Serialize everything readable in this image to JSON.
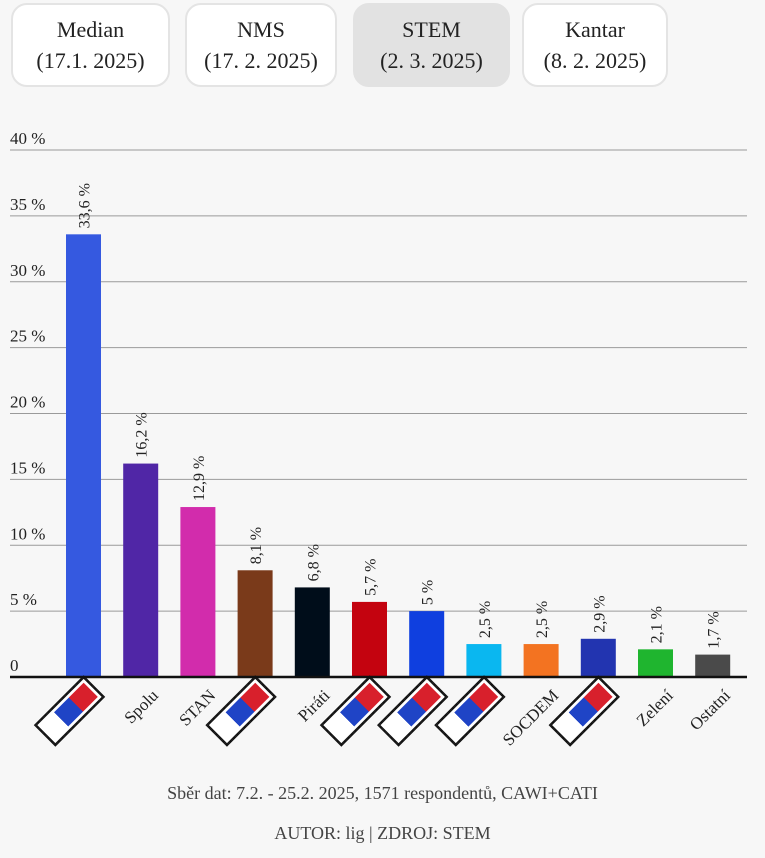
{
  "tabs": [
    {
      "name": "Median",
      "date": "(17.1. 2025)",
      "active": false
    },
    {
      "name": "NMS",
      "date": "(17. 2. 2025)",
      "active": false
    },
    {
      "name": "STEM",
      "date": "(2. 3. 2025)",
      "active": true
    },
    {
      "name": "Kantar",
      "date": "(8. 2. 2025)",
      "active": false
    }
  ],
  "chart_data": {
    "type": "bar",
    "yticks": [
      "0",
      "5 %",
      "10 %",
      "15 %",
      "20 %",
      "25 %",
      "30 %",
      "35 %",
      "40 %"
    ],
    "ylim": [
      0,
      40
    ],
    "grid": true,
    "bars": [
      {
        "label": "",
        "value": 33.6,
        "value_label": "33,6 %",
        "color": "#3559e0",
        "flag": true
      },
      {
        "label": "Spolu",
        "value": 16.2,
        "value_label": "16,2 %",
        "color": "#5026a6",
        "flag": false
      },
      {
        "label": "STAN",
        "value": 12.9,
        "value_label": "12,9 %",
        "color": "#d22cac",
        "flag": false
      },
      {
        "label": "",
        "value": 8.1,
        "value_label": "8,1 %",
        "color": "#7a3a1a",
        "flag": true
      },
      {
        "label": "Piráti",
        "value": 6.8,
        "value_label": "6,8 %",
        "color": "#000d1a",
        "flag": false
      },
      {
        "label": "",
        "value": 5.7,
        "value_label": "5,7 %",
        "color": "#c4030f",
        "flag": true
      },
      {
        "label": "",
        "value": 5.0,
        "value_label": "5 %",
        "color": "#0f3fdf",
        "flag": true
      },
      {
        "label": "",
        "value": 2.5,
        "value_label": "2,5 %",
        "color": "#0ab7f0",
        "flag": true
      },
      {
        "label": "SOCDEM",
        "value": 2.5,
        "value_label": "2,5 %",
        "color": "#f37321",
        "flag": false
      },
      {
        "label": "",
        "value": 2.9,
        "value_label": "2,9 %",
        "color": "#2234b0",
        "flag": true
      },
      {
        "label": "Zelení",
        "value": 2.1,
        "value_label": "2,1 %",
        "color": "#1fb52f",
        "flag": false
      },
      {
        "label": "Ostatní",
        "value": 1.7,
        "value_label": "1,7 %",
        "color": "#4a4a4a",
        "flag": false
      }
    ]
  },
  "footer": {
    "note": "Sběr dat: 7.2. - 25.2. 2025, 1571 respondentů, CAWI+CATI",
    "credit": "AUTOR: lig | ZDROJ: STEM"
  }
}
